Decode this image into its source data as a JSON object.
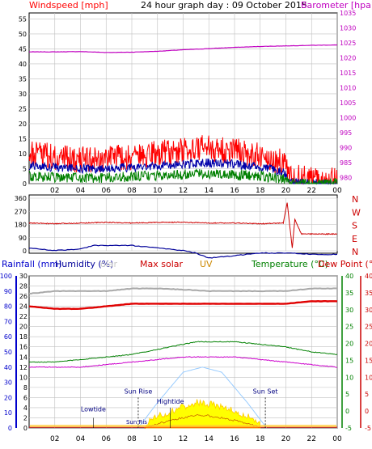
{
  "colors": {
    "grid": "#c0c0c0",
    "axis": "#000000",
    "wind_axis": "#ff0000",
    "baro": "#c000c0",
    "dir_axis": "#cc0000",
    "rain": "#0000cc",
    "temp": "#008000",
    "dew": "#cc0000",
    "solar_label": "#c8c8c8",
    "maxsolar_label": "#cc0000",
    "uv_label": "#cc8800",
    "temp_label": "#008000",
    "dew_label": "#cc0000",
    "wind_gust": "#ff0000",
    "wind_avg": "#0000aa",
    "wind_min": "#008000",
    "dir_line": "#cc0000",
    "humidity": "#000099",
    "grey_line": "#a8a8a8",
    "red_thick": "#e00000",
    "green_line": "#008000",
    "magenta_line": "#cc00cc",
    "daylight_curve": "#99ccff",
    "solar_fill": "#ffff00",
    "solar_edge": "#ffcc00",
    "uv_line": "#cc6600",
    "rain_axis_label": "#0000cc",
    "humidity_label": "#000099"
  },
  "chart_data": [
    {
      "type": "line",
      "title": "24 hour graph day : 09 October 2015",
      "left_label": "Windspeed [mph]",
      "right_label": "Barometer [hpa]",
      "x_ticks": [
        "02",
        "04",
        "06",
        "08",
        "10",
        "12",
        "14",
        "16",
        "18",
        "20",
        "22",
        "00"
      ],
      "x_range_hours": [
        0,
        24
      ],
      "y_left_ticks": [
        0,
        5,
        10,
        15,
        20,
        25,
        30,
        35,
        40,
        45,
        50,
        55
      ],
      "y_left_range": [
        0,
        57
      ],
      "y_right_ticks": [
        980,
        985,
        990,
        995,
        1000,
        1005,
        1010,
        1015,
        1020,
        1025,
        1030,
        1035
      ],
      "y_right_range": [
        978,
        1035
      ],
      "series": [
        {
          "values_x": [
            0,
            2,
            4,
            6,
            8,
            10,
            12,
            14,
            16,
            18,
            20,
            22,
            24
          ],
          "values": [
            1022,
            1022,
            1022.1,
            1021.8,
            1021.9,
            1022.2,
            1022.7,
            1023.1,
            1023.5,
            1023.8,
            1024,
            1024.2,
            1024.3
          ]
        },
        {
          "values_x": [
            0,
            2,
            4,
            6,
            8,
            10,
            12,
            14,
            16,
            18,
            19.8,
            20.5,
            22,
            24
          ],
          "values": [
            10,
            9,
            8,
            8,
            9,
            10,
            11,
            12,
            11,
            9,
            7,
            2,
            1.5,
            1
          ]
        },
        {
          "values_x": [
            0,
            2,
            4,
            6,
            8,
            10,
            12,
            14,
            16,
            18,
            19.8,
            20.5,
            22,
            24
          ],
          "values": [
            6,
            5.5,
            5,
            5,
            5.5,
            6,
            6.5,
            7,
            6.5,
            5.5,
            4,
            0.5,
            0,
            0
          ]
        },
        {
          "values_x": [
            0,
            2,
            4,
            6,
            8,
            10,
            12,
            14,
            16,
            18,
            19.8,
            20.5,
            22,
            24
          ],
          "values": [
            2.5,
            2,
            2,
            2,
            2.3,
            2.8,
            3,
            3.3,
            3,
            2.5,
            1.5,
            0,
            0,
            0
          ]
        }
      ]
    },
    {
      "type": "line",
      "y_left_ticks": [
        0,
        90,
        180,
        270,
        360
      ],
      "y_right_labels": [
        "N",
        "W",
        "S",
        "E",
        "N"
      ],
      "x_ticks": [
        "02",
        "04",
        "06",
        "08",
        "10",
        "12",
        "14",
        "16",
        "18",
        "20",
        "22",
        "00"
      ],
      "series": [
        {
          "values_x": [
            0,
            2,
            4,
            6,
            8,
            10,
            12,
            14,
            16,
            18,
            19.8,
            20.1,
            20.3,
            20.5,
            20.7,
            21.2,
            22,
            24
          ],
          "values": [
            190,
            185,
            190,
            195,
            190,
            195,
            195,
            190,
            190,
            185,
            190,
            330,
            170,
            20,
            215,
            115,
            115,
            115
          ]
        }
      ]
    },
    {
      "type": "line",
      "labels": {
        "rainfall": "Rainfall (mm)",
        "humidity": "Humidity (%)",
        "solar": "olar",
        "max_solar": "Max solar",
        "uv": "UV",
        "temperature": "Temperature (°C)",
        "dew_point": "Dew Point (°C)"
      },
      "rain_ticks": [
        0,
        10,
        20,
        30,
        40,
        50,
        60,
        70,
        80,
        90,
        100
      ],
      "mid_ticks": [
        0,
        2,
        4,
        6,
        8,
        10,
        12,
        14,
        16,
        18,
        20,
        22,
        24,
        26,
        28,
        30
      ],
      "temp_ticks": [
        -5,
        0,
        5,
        10,
        15,
        20,
        25,
        30,
        35,
        40
      ],
      "dew_ticks": [
        -5,
        0,
        5,
        10,
        15,
        20,
        25,
        30,
        35,
        40
      ],
      "x_ticks": [
        "02",
        "04",
        "06",
        "08",
        "10",
        "12",
        "14",
        "16",
        "18",
        "20",
        "22",
        "00"
      ],
      "annotations": {
        "lowtide": "Lowtide",
        "sunrise": "Sun Rise",
        "hightide": "Hightide",
        "sunset": "Sun Set",
        "sunrise_overlap": "Sun Ris"
      },
      "series": [
        {
          "values_x": [
            0,
            2,
            4,
            5,
            6,
            8,
            10,
            12,
            13,
            14,
            16,
            18,
            20,
            22,
            24
          ],
          "values": [
            35.5,
            35,
            35.3,
            36,
            36,
            36,
            35.5,
            35,
            34.5,
            33.5,
            34,
            34.5,
            34.5,
            34.3,
            34.2
          ]
        },
        {
          "values_x": [
            0,
            2,
            4,
            6,
            8,
            10,
            12,
            14,
            16,
            18,
            20,
            22,
            24
          ],
          "values": [
            26.5,
            27,
            27,
            27,
            27.5,
            27.5,
            27.3,
            27,
            27,
            27,
            27,
            27.5,
            27.5
          ]
        },
        {
          "values_x": [
            0,
            2,
            4,
            6,
            8,
            10,
            12,
            14,
            16,
            18,
            20,
            22,
            24
          ],
          "values": [
            24,
            23.5,
            23.5,
            24,
            24.5,
            24.5,
            24.5,
            24.5,
            24.5,
            24.5,
            24.5,
            25,
            25
          ]
        },
        {
          "values_x": [
            0,
            2,
            4,
            6,
            8,
            10,
            12,
            13,
            14,
            16,
            18,
            20,
            22,
            24
          ],
          "values": [
            13,
            13,
            13.5,
            14,
            14.5,
            15.5,
            16.5,
            17,
            17,
            17,
            16.5,
            16,
            15,
            14.5
          ]
        },
        {
          "values_x": [
            0,
            2,
            4,
            6,
            8,
            10,
            12,
            14,
            16,
            18,
            20,
            22,
            24
          ],
          "values": [
            12,
            12,
            12,
            12.5,
            13,
            13.5,
            14,
            14,
            14,
            13.5,
            13,
            12.5,
            12
          ]
        },
        {
          "values_x": [
            8.5,
            10,
            11,
            12,
            13.5,
            15,
            16,
            17,
            18.5
          ],
          "values": [
            0,
            5,
            8,
            11,
            12,
            11,
            8,
            5,
            0
          ]
        },
        {
          "values_x": [
            9,
            10,
            11,
            12,
            13,
            14,
            15,
            16,
            17,
            18
          ],
          "values": [
            0,
            1.5,
            2.5,
            3.5,
            4.3,
            4,
            3.5,
            2.5,
            1.5,
            0.5
          ]
        },
        {
          "values_x": [
            9,
            10,
            11,
            12,
            13,
            14,
            15,
            16,
            17,
            18
          ],
          "values": [
            0,
            0.8,
            1.5,
            2,
            2.6,
            2.4,
            2,
            1.5,
            0.8,
            0.2
          ]
        }
      ]
    }
  ]
}
